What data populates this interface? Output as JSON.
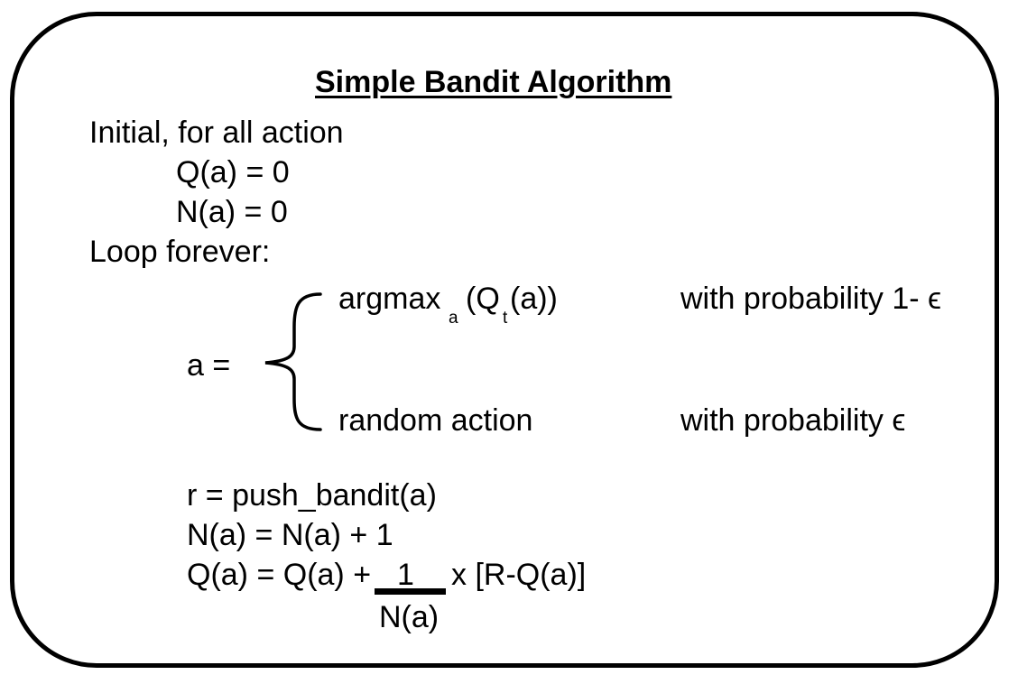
{
  "title": "Simple Bandit Algorithm",
  "init": {
    "heading": "Initial, for all action",
    "q_init": "Q(a) = 0",
    "n_init": "N(a) = 0"
  },
  "loop": {
    "heading": "Loop forever:"
  },
  "selection": {
    "lhs": "a  =",
    "greedy": {
      "fn": "argmax",
      "fn_sub": "a",
      "arg_open": "(Q",
      "arg_sub": "t",
      "arg_close": "(a))",
      "condition": "with probability 1- ϵ"
    },
    "explore": {
      "action": "random action",
      "condition": "with probability ϵ"
    }
  },
  "update": {
    "reward": "r = push_bandit(a)",
    "count": "N(a) = N(a) + 1",
    "value_lhs": "Q(a) = Q(a) +",
    "numerator": "1",
    "denominator": "N(a)",
    "multiplier": "x  [R-Q(a)]"
  }
}
